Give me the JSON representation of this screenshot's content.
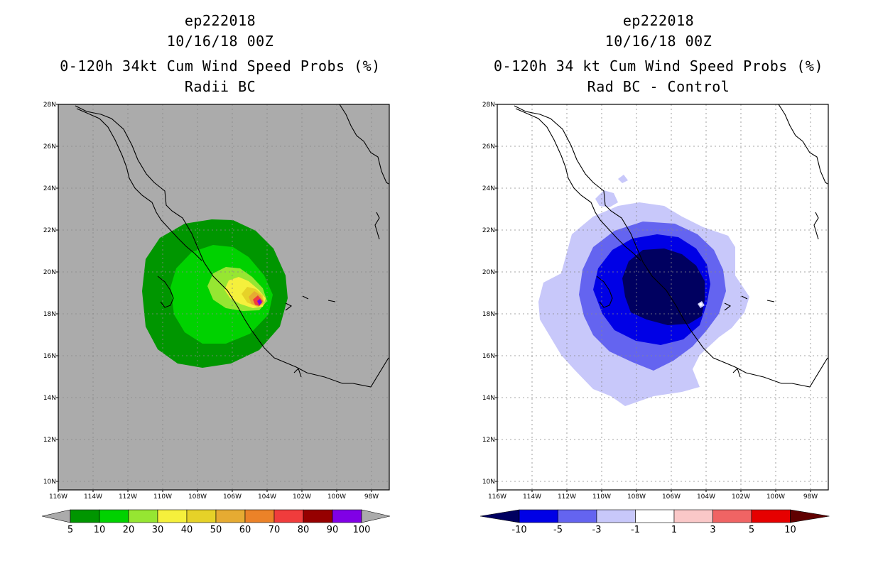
{
  "left": {
    "title": [
      "ep222018",
      "10/16/18 00Z",
      "0-120h 34kt Cum Wind Speed Probs (%)",
      "Radii BC"
    ],
    "colorbar": {
      "labels": [
        "5",
        "10",
        "20",
        "30",
        "40",
        "50",
        "60",
        "70",
        "80",
        "90",
        "100"
      ],
      "colors": [
        "#009600",
        "#00d200",
        "#96e632",
        "#f5f03c",
        "#e6d228",
        "#e6ab32",
        "#eb8228",
        "#f03c3c",
        "#960000",
        "#8000e6"
      ]
    },
    "background": "#ababab"
  },
  "right": {
    "title": [
      "ep222018",
      "10/16/18 00Z",
      "0-120h 34 kt Cum Wind Speed Probs (%)",
      "Rad BC - Control"
    ],
    "colorbar": {
      "labels": [
        "-10",
        "-5",
        "-3",
        "-1",
        "1",
        "3",
        "5",
        "10"
      ],
      "colors": [
        "#000060",
        "#0000e6",
        "#6464f0",
        "#c8c8fa",
        "#ffffff",
        "#fac8c8",
        "#f06464",
        "#e60000",
        "#600000"
      ]
    },
    "background": "#ffffff"
  },
  "axes": {
    "lat_labels": [
      "28N",
      "26N",
      "24N",
      "22N",
      "20N",
      "18N",
      "16N",
      "14N",
      "12N",
      "10N"
    ],
    "lon_labels": [
      "116W",
      "114W",
      "112W",
      "110W",
      "108W",
      "106W",
      "104W",
      "102W",
      "100W",
      "98W"
    ]
  }
}
